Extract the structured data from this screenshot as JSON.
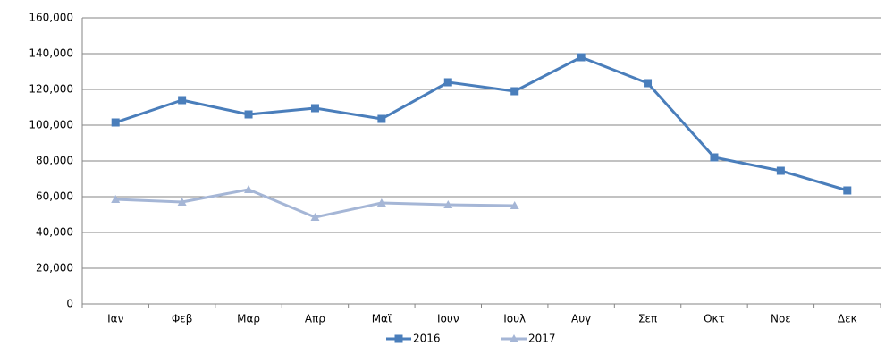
{
  "chart_data": {
    "type": "line",
    "categories": [
      "Ιαν",
      "Φεβ",
      "Μαρ",
      "Απρ",
      "Μαϊ",
      "Ιουν",
      "Ιουλ",
      "Αυγ",
      "Σεπ",
      "Οκτ",
      "Νοε",
      "Δεκ"
    ],
    "series": [
      {
        "name": "2016",
        "color": "#4a7ebb",
        "marker": "square",
        "values": [
          101500,
          114000,
          106000,
          109500,
          103500,
          124000,
          119000,
          138000,
          123500,
          82000,
          74500,
          63500
        ]
      },
      {
        "name": "2017",
        "color": "#a5b6d6",
        "marker": "triangle",
        "values": [
          58500,
          57000,
          64000,
          48500,
          56500,
          55500,
          55000,
          null,
          null,
          null,
          null,
          null
        ]
      }
    ],
    "ylim": [
      0,
      160000
    ],
    "yticks": [
      0,
      {
        "value": 20000,
        "label": "20,000"
      },
      {
        "value": 40000,
        "label": "40,000"
      },
      {
        "value": 60000,
        "label": "60,000"
      },
      {
        "value": 80000,
        "label": "80,000"
      },
      {
        "value": 100000,
        "label": "100,000"
      },
      {
        "value": 120000,
        "label": "120,000"
      },
      {
        "value": 140000,
        "label": "140,000"
      },
      {
        "value": 160000,
        "label": "160,000"
      }
    ],
    "grid": true,
    "legend": "bottom"
  }
}
